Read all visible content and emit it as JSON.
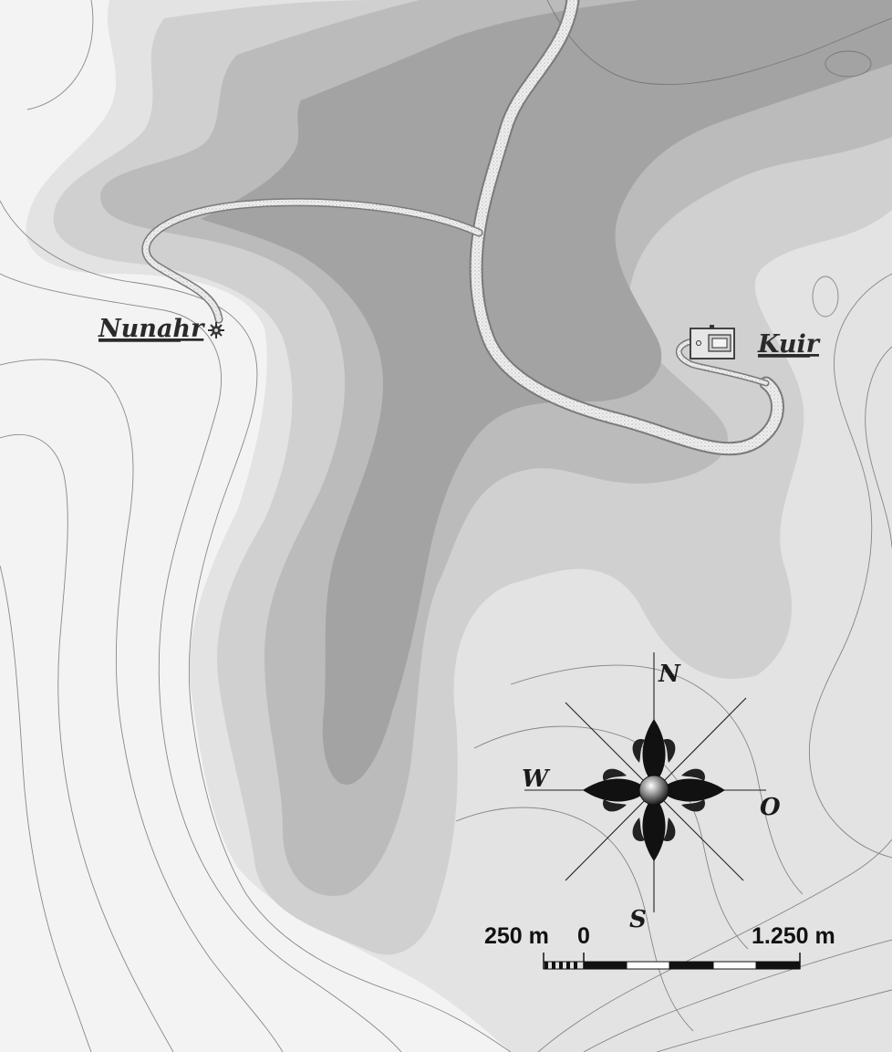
{
  "places": {
    "nunahr": {
      "name": "Nunahr",
      "icon": "sun-star-icon"
    },
    "kuir": {
      "name": "Kuir",
      "icon": "building-plan-icon"
    }
  },
  "compass": {
    "north": "N",
    "south": "S",
    "west": "W",
    "east": "O"
  },
  "scale": {
    "left_label": "250 m",
    "zero_label": "0",
    "right_label": "1.250 m"
  },
  "colors": {
    "background": "#ffffff",
    "band1": "#eaeaea",
    "band2": "#d7d7d7",
    "band3": "#bdbdbd",
    "band4": "#a6a6a6",
    "band5": "#8e8e8e",
    "road": "#e8e8e8",
    "contour": "#6e6e6e"
  }
}
